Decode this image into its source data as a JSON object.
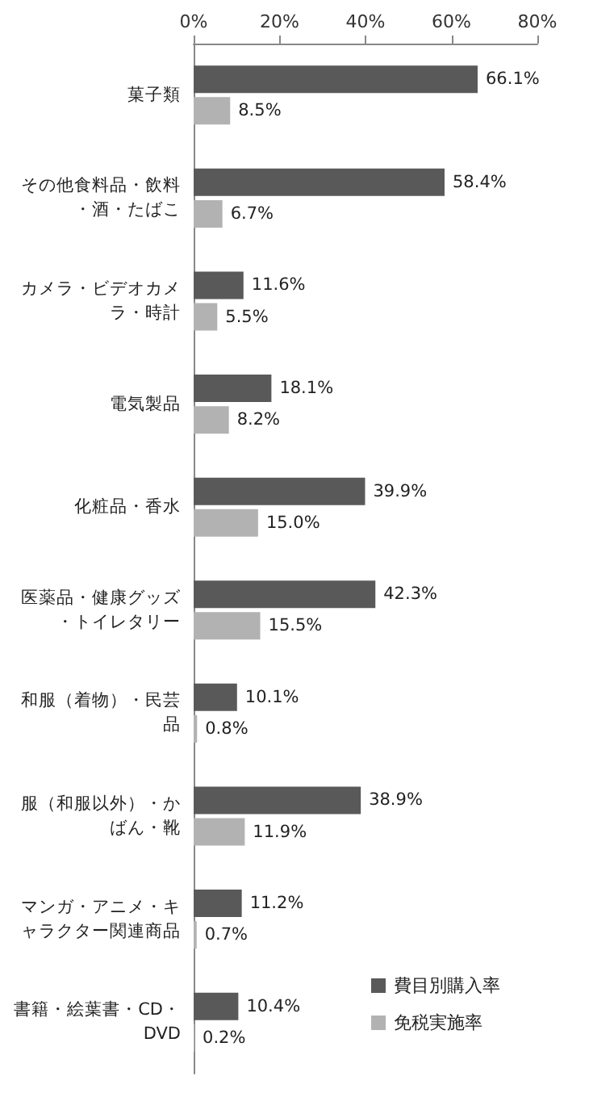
{
  "chart_data": {
    "type": "bar",
    "orientation": "horizontal",
    "categories": [
      "菓子類",
      "その他食料品・飲料・酒・たばこ",
      "カメラ・ビデオカメラ・時計",
      "電気製品",
      "化粧品・香水",
      "医薬品・健康グッズ・トイレタリー",
      "和服（着物）・民芸品",
      "服（和服以外）・かばん・靴",
      "マンガ・アニメ・キャラクター関連商品",
      "書籍・絵葉書・CD・DVD"
    ],
    "series": [
      {
        "name": "費目別購入率",
        "color": "#595959",
        "values": [
          66.1,
          58.4,
          11.6,
          18.1,
          39.9,
          42.3,
          10.1,
          38.9,
          11.2,
          10.4
        ],
        "value_labels": [
          "66.1%",
          "58.4%",
          "11.6%",
          "18.1%",
          "39.9%",
          "42.3%",
          "10.1%",
          "38.9%",
          "11.2%",
          "10.4%"
        ]
      },
      {
        "name": "免税実施率",
        "color": "#b2b2b2",
        "values": [
          8.5,
          6.7,
          5.5,
          8.2,
          15.0,
          15.5,
          0.8,
          11.9,
          0.7,
          0.2
        ],
        "value_labels": [
          "8.5%",
          "6.7%",
          "5.5%",
          "8.2%",
          "15.0%",
          "15.5%",
          "0.8%",
          "11.9%",
          "0.7%",
          "0.2%"
        ]
      }
    ],
    "xlim": [
      0,
      80
    ],
    "xticks": [
      {
        "value": 0,
        "label": "0%"
      },
      {
        "value": 20,
        "label": "20%"
      },
      {
        "value": 40,
        "label": "40%"
      },
      {
        "value": 60,
        "label": "60%"
      },
      {
        "value": 80,
        "label": "80%"
      }
    ],
    "grid": false,
    "legend": "bottom right"
  }
}
